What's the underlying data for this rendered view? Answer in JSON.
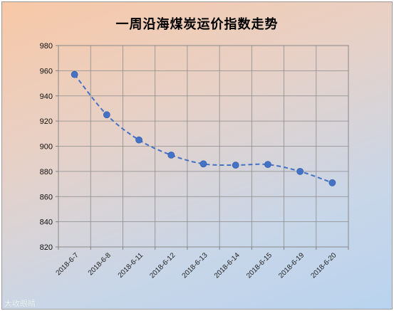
{
  "chart_data": {
    "type": "line",
    "title": "一周沿海煤炭运价指数走势",
    "categories": [
      "2018-6-7",
      "2018-6-8",
      "2018-6-11",
      "2018-6-12",
      "2018-6-13",
      "2018-6-14",
      "2018-6-15",
      "2018-6-19",
      "2018-6-20"
    ],
    "values": [
      957,
      925,
      905,
      893,
      886,
      885,
      885.5,
      880,
      871
    ],
    "ylim": [
      820,
      980
    ],
    "yticks": [
      820,
      840,
      860,
      880,
      900,
      920,
      940,
      960,
      980
    ],
    "grid": true,
    "line_style": "dashed",
    "series_color": "#4472c4"
  },
  "watermark": "大收眼睛"
}
